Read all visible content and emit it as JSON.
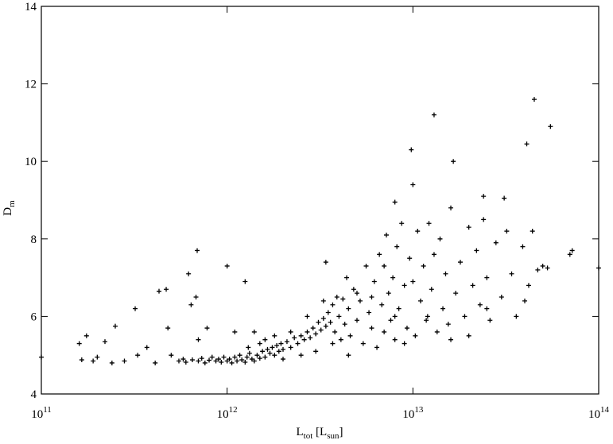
{
  "chart_data": {
    "type": "scatter",
    "xlabel": [
      "L",
      "tot",
      " [L",
      "sun",
      "]"
    ],
    "ylabel": [
      "D",
      "m"
    ],
    "xscale": "log",
    "xlim": [
      100000000000.0,
      100000000000000.0
    ],
    "ylim": [
      4,
      14
    ],
    "xticks": [
      {
        "value": 100000000000.0,
        "label": "10",
        "exponent": "11"
      },
      {
        "value": 1000000000000.0,
        "label": "10",
        "exponent": "12"
      },
      {
        "value": 10000000000000.0,
        "label": "10",
        "exponent": "13"
      },
      {
        "value": 100000000000000.0,
        "label": "10",
        "exponent": "14"
      }
    ],
    "yticks": [
      4,
      6,
      8,
      10,
      12,
      14
    ],
    "color": "#000000",
    "x": [
      100000000000.0,
      160000000000.0,
      165000000000.0,
      175000000000.0,
      190000000000.0,
      200000000000.0,
      220000000000.0,
      240000000000.0,
      250000000000.0,
      280000000000.0,
      320000000000.0,
      330000000000.0,
      370000000000.0,
      410000000000.0,
      430000000000.0,
      470000000000.0,
      480000000000.0,
      500000000000.0,
      620000000000.0,
      640000000000.0,
      690000000000.0,
      680000000000.0,
      700000000000.0,
      780000000000.0,
      1000000000000.0,
      1100000000000.0,
      1250000000000.0,
      1300000000000.0,
      1400000000000.0,
      1600000000000.0,
      550000000000.0,
      580000000000.0,
      600000000000.0,
      650000000000.0,
      700000000000.0,
      730000000000.0,
      760000000000.0,
      800000000000.0,
      830000000000.0,
      870000000000.0,
      900000000000.0,
      930000000000.0,
      960000000000.0,
      1000000000000.0,
      1030000000000.0,
      1060000000000.0,
      1100000000000.0,
      1130000000000.0,
      1170000000000.0,
      1200000000000.0,
      1250000000000.0,
      1280000000000.0,
      1320000000000.0,
      1360000000000.0,
      1400000000000.0,
      1450000000000.0,
      1500000000000.0,
      1550000000000.0,
      1600000000000.0,
      1650000000000.0,
      1700000000000.0,
      1750000000000.0,
      1800000000000.0,
      1850000000000.0,
      1900000000000.0,
      1950000000000.0,
      2000000000000.0,
      2100000000000.0,
      2200000000000.0,
      2300000000000.0,
      2400000000000.0,
      2500000000000.0,
      2600000000000.0,
      2700000000000.0,
      2800000000000.0,
      2900000000000.0,
      3000000000000.0,
      3100000000000.0,
      3200000000000.0,
      3300000000000.0,
      3400000000000.0,
      3500000000000.0,
      3600000000000.0,
      3700000000000.0,
      3800000000000.0,
      3900000000000.0,
      4000000000000.0,
      4100000000000.0,
      4200000000000.0,
      4300000000000.0,
      4400000000000.0,
      4500000000000.0,
      4600000000000.0,
      4800000000000.0,
      5000000000000.0,
      5200000000000.0,
      5400000000000.0,
      5600000000000.0,
      5800000000000.0,
      6000000000000.0,
      6200000000000.0,
      6400000000000.0,
      6600000000000.0,
      6800000000000.0,
      7000000000000.0,
      7200000000000.0,
      7400000000000.0,
      7600000000000.0,
      7800000000000.0,
      8000000000000.0,
      8200000000000.0,
      8400000000000.0,
      8700000000000.0,
      9000000000000.0,
      9300000000000.0,
      9600000000000.0,
      10000000000000.0,
      10300000000000.0,
      10600000000000.0,
      11000000000000.0,
      11400000000000.0,
      11800000000000.0,
      12200000000000.0,
      12600000000000.0,
      13000000000000.0,
      13500000000000.0,
      14000000000000.0,
      14500000000000.0,
      15000000000000.0,
      15500000000000.0,
      16000000000000.0,
      17000000000000.0,
      18000000000000.0,
      19000000000000.0,
      20000000000000.0,
      21000000000000.0,
      22000000000000.0,
      23000000000000.0,
      24000000000000.0,
      25000000000000.0,
      26000000000000.0,
      28000000000000.0,
      30000000000000.0,
      32000000000000.0,
      34000000000000.0,
      36000000000000.0,
      39000000000000.0,
      42000000000000.0,
      44000000000000.0,
      47000000000000.0,
      53000000000000.0,
      1500000000000.0,
      2000000000000.0,
      2500000000000.0,
      3000000000000.0,
      2200000000000.0,
      1800000000000.0,
      2700000000000.0,
      3300000000000.0,
      3700000000000.0,
      4500000000000.0,
      5000000000000.0,
      6000000000000.0,
      7000000000000.0,
      8000000000000.0,
      9000000000000.0,
      12000000000000.0,
      16000000000000.0,
      20000000000000.0,
      25000000000000.0,
      9800000000000.0,
      10000000000000.0,
      13000000000000.0,
      16500000000000.0,
      45000000000000.0,
      41000000000000.0,
      55000000000000.0,
      24000000000000.0,
      31000000000000.0,
      70000000000000.0,
      72000000000000.0,
      50000000000000.0,
      40000000000000.0,
      100000000000000.0,
      3400000000000.0,
      8000000000000.0
    ],
    "values": [
      4.95,
      5.3,
      4.88,
      5.5,
      4.85,
      4.95,
      5.35,
      4.8,
      5.75,
      4.85,
      6.2,
      5.0,
      5.2,
      4.8,
      6.65,
      6.7,
      5.7,
      5.0,
      7.1,
      6.3,
      7.7,
      6.5,
      5.4,
      5.7,
      7.3,
      5.6,
      6.9,
      5.2,
      5.6,
      5.4,
      4.85,
      4.9,
      4.82,
      4.88,
      4.85,
      4.92,
      4.8,
      4.87,
      4.95,
      4.85,
      4.9,
      4.82,
      4.95,
      4.85,
      4.9,
      4.8,
      4.95,
      4.85,
      5.0,
      4.88,
      4.82,
      4.95,
      5.05,
      4.9,
      4.85,
      5.0,
      4.92,
      5.1,
      4.95,
      5.15,
      5.05,
      5.2,
      5.0,
      5.25,
      5.1,
      5.3,
      5.15,
      5.35,
      5.2,
      5.45,
      5.3,
      5.5,
      5.4,
      5.6,
      5.45,
      5.7,
      5.55,
      5.85,
      5.65,
      5.95,
      5.75,
      6.1,
      5.85,
      6.3,
      5.6,
      6.5,
      6.0,
      5.4,
      6.45,
      5.8,
      7.0,
      6.2,
      5.5,
      6.7,
      5.9,
      6.4,
      5.3,
      7.3,
      6.1,
      5.7,
      6.9,
      5.2,
      7.6,
      6.3,
      5.6,
      8.1,
      6.6,
      5.9,
      7.0,
      5.4,
      7.8,
      6.2,
      8.4,
      6.8,
      5.7,
      7.5,
      6.9,
      5.5,
      8.2,
      6.4,
      7.3,
      5.9,
      8.4,
      6.7,
      7.6,
      5.6,
      8.0,
      6.2,
      7.1,
      5.8,
      8.8,
      6.6,
      7.4,
      6.0,
      8.3,
      6.8,
      7.7,
      6.3,
      8.5,
      7.0,
      5.9,
      7.9,
      6.5,
      8.2,
      7.1,
      6.0,
      7.8,
      6.8,
      8.2,
      7.2,
      7.25,
      5.3,
      4.9,
      5.0,
      5.1,
      5.6,
      5.5,
      6.0,
      6.4,
      5.3,
      5.0,
      6.6,
      6.5,
      7.3,
      6.0,
      5.3,
      6.0,
      5.4,
      5.5,
      6.2,
      10.3,
      9.4,
      11.2,
      10.0,
      11.6,
      10.45,
      10.9,
      9.1,
      9.05,
      7.6,
      7.7,
      7.3,
      6.4,
      7.25,
      7.4,
      8.95
    ]
  }
}
